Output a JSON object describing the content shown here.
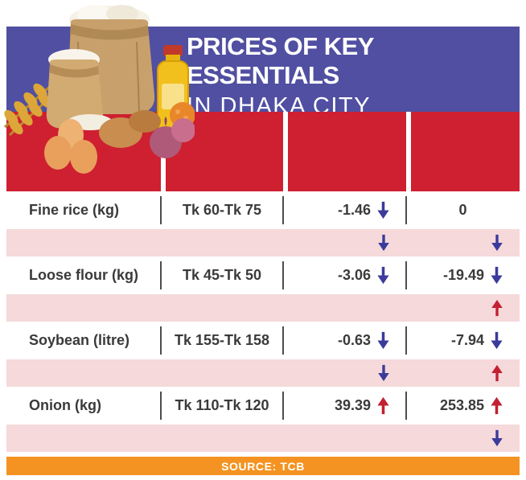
{
  "header": {
    "title_line1": "PRICES OF KEY ESSENTIALS",
    "title_line2": "IN DHAKA CITY"
  },
  "footer": {
    "source_label": "SOURCE: TCB"
  },
  "colors": {
    "header_band": "#504fa1",
    "table_header_red": "#ce2030",
    "row_pink": "#f5d9db",
    "footer_orange": "#f49321",
    "arrow_down_blue": "#3b3b9b",
    "arrow_up_red": "#c32031"
  },
  "table": {
    "rows": [
      {
        "type": "data",
        "item": "Fine rice (kg)",
        "price": "Tk 60-Tk 75",
        "change1": "-1.46",
        "arrow1": "down",
        "change2": "0",
        "arrow2": "none"
      },
      {
        "type": "spacer",
        "item": "",
        "price": "",
        "change1": "",
        "arrow1": "down",
        "change2": "",
        "arrow2": "down"
      },
      {
        "type": "data",
        "item": "Loose flour (kg)",
        "price": "Tk 45-Tk 50",
        "change1": "-3.06",
        "arrow1": "down",
        "change2": "-19.49",
        "arrow2": "down"
      },
      {
        "type": "spacer",
        "item": "",
        "price": "",
        "change1": "",
        "arrow1": "none",
        "change2": "",
        "arrow2": "up"
      },
      {
        "type": "data",
        "item": "Soybean (litre)",
        "price": "Tk 155-Tk 158",
        "change1": "-0.63",
        "arrow1": "down",
        "change2": "-7.94",
        "arrow2": "down"
      },
      {
        "type": "spacer",
        "item": "",
        "price": "",
        "change1": "",
        "arrow1": "down",
        "change2": "",
        "arrow2": "up"
      },
      {
        "type": "data",
        "item": "Onion (kg)",
        "price": "Tk 110-Tk 120",
        "change1": "39.39",
        "arrow1": "up",
        "change2": "253.85",
        "arrow2": "up"
      },
      {
        "type": "spacer",
        "item": "",
        "price": "",
        "change1": "",
        "arrow1": "none",
        "change2": "",
        "arrow2": "down"
      }
    ]
  },
  "chart_data": {
    "type": "table",
    "title": "PRICES OF KEY ESSENTIALS IN DHAKA CITY",
    "source": "SOURCE: TCB",
    "rows": [
      [
        "Fine rice (kg)",
        "Tk 60-Tk 75",
        "-1.46 ↓",
        "0"
      ],
      [
        "Loose flour (kg)",
        "Tk 45-Tk 50",
        "-3.06 ↓",
        "-19.49 ↓"
      ],
      [
        "Soybean (litre)",
        "Tk 155-Tk 158",
        "-0.63 ↓",
        "-7.94 ↓"
      ],
      [
        "Onion (kg)",
        "Tk 110-Tk 120",
        "39.39 ↑",
        "253.85 ↑"
      ]
    ]
  }
}
